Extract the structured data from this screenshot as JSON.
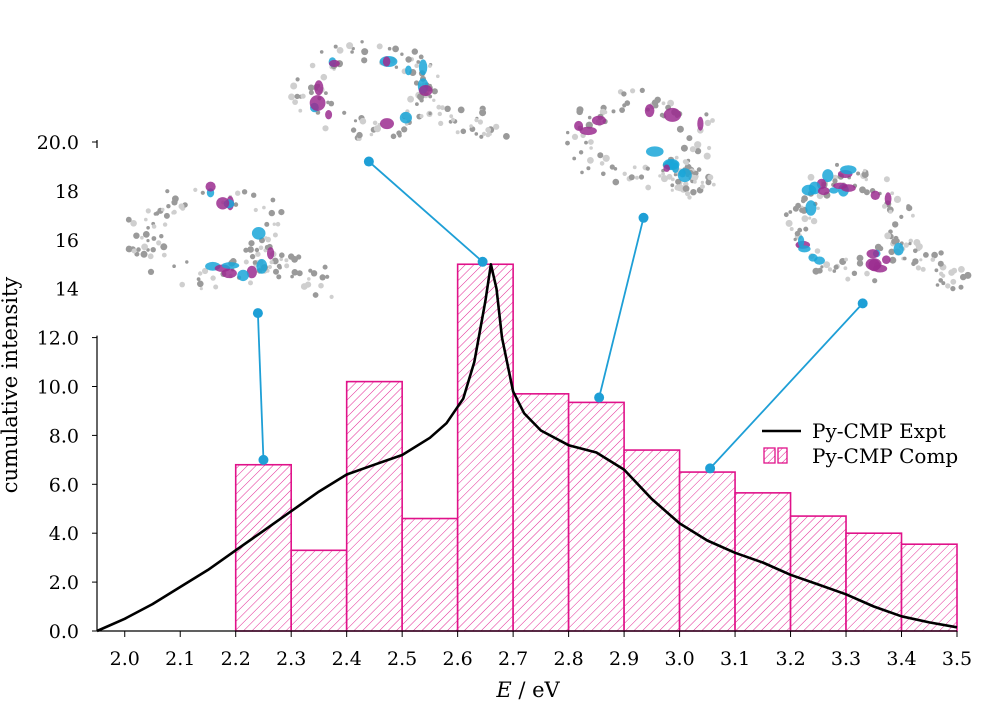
{
  "chart_data": {
    "type": "bar",
    "xlabel_italic": "E",
    "xlabel_rest": " / eV",
    "ylabel": "cumulative intensity",
    "xlim": [
      1.95,
      3.5
    ],
    "ylim": [
      0,
      20
    ],
    "x_ticks": [
      "2.0",
      "2.1",
      "2.2",
      "2.3",
      "2.4",
      "2.5",
      "2.6",
      "2.7",
      "2.8",
      "2.9",
      "3.0",
      "3.1",
      "3.2",
      "3.3",
      "3.4",
      "3.5"
    ],
    "y_ticks_lower": [
      "0.0",
      "2.0",
      "4.0",
      "6.0",
      "8.0",
      "10.0",
      "12.0"
    ],
    "y_ticks_upper": [
      "14",
      "16",
      "18",
      "20.0"
    ],
    "legend_position": "right",
    "series": [
      {
        "name": "Py-CMP Comp",
        "kind": "histogram",
        "color": "#e0128a",
        "bin_width": 0.1,
        "bins": [
          {
            "x0": 2.2,
            "value": 6.8
          },
          {
            "x0": 2.3,
            "value": 3.3
          },
          {
            "x0": 2.4,
            "value": 10.2
          },
          {
            "x0": 2.5,
            "value": 4.6
          },
          {
            "x0": 2.6,
            "value": 15.0
          },
          {
            "x0": 2.7,
            "value": 9.7
          },
          {
            "x0": 2.8,
            "value": 9.35
          },
          {
            "x0": 2.9,
            "value": 7.4
          },
          {
            "x0": 3.0,
            "value": 6.5
          },
          {
            "x0": 3.1,
            "value": 5.65
          },
          {
            "x0": 3.2,
            "value": 4.7
          },
          {
            "x0": 3.3,
            "value": 4.0
          },
          {
            "x0": 3.4,
            "value": 3.55
          }
        ]
      },
      {
        "name": "Py-CMP Expt",
        "kind": "line",
        "color": "#000000",
        "x": [
          1.95,
          2.0,
          2.05,
          2.1,
          2.15,
          2.2,
          2.25,
          2.3,
          2.35,
          2.4,
          2.45,
          2.5,
          2.55,
          2.58,
          2.61,
          2.63,
          2.65,
          2.66,
          2.67,
          2.68,
          2.7,
          2.72,
          2.75,
          2.8,
          2.85,
          2.9,
          2.95,
          3.0,
          3.05,
          3.1,
          3.15,
          3.2,
          3.25,
          3.3,
          3.35,
          3.4,
          3.45,
          3.5
        ],
        "y": [
          0.0,
          0.5,
          1.1,
          1.8,
          2.5,
          3.3,
          4.1,
          4.9,
          5.7,
          6.4,
          6.8,
          7.2,
          7.9,
          8.5,
          9.5,
          11.0,
          13.5,
          15.0,
          14.0,
          12.0,
          9.8,
          8.9,
          8.2,
          7.6,
          7.3,
          6.6,
          5.4,
          4.4,
          3.7,
          3.2,
          2.8,
          2.3,
          1.9,
          1.5,
          1.0,
          0.6,
          0.35,
          0.15
        ]
      }
    ],
    "annotations": [
      {
        "dot": [
          2.25,
          7.0
        ],
        "end": [
          2.24,
          13.0
        ],
        "orbital": "homo-ring"
      },
      {
        "dot": [
          2.645,
          15.1
        ],
        "end": [
          2.44,
          19.2
        ],
        "orbital": "lumo-ring"
      },
      {
        "dot": [
          2.855,
          9.55
        ],
        "end": [
          2.935,
          16.9
        ],
        "orbital": "pyrene-arm"
      },
      {
        "dot": [
          3.055,
          6.65
        ],
        "end": [
          3.33,
          13.4
        ],
        "orbital": "delocalized-ring"
      }
    ]
  }
}
